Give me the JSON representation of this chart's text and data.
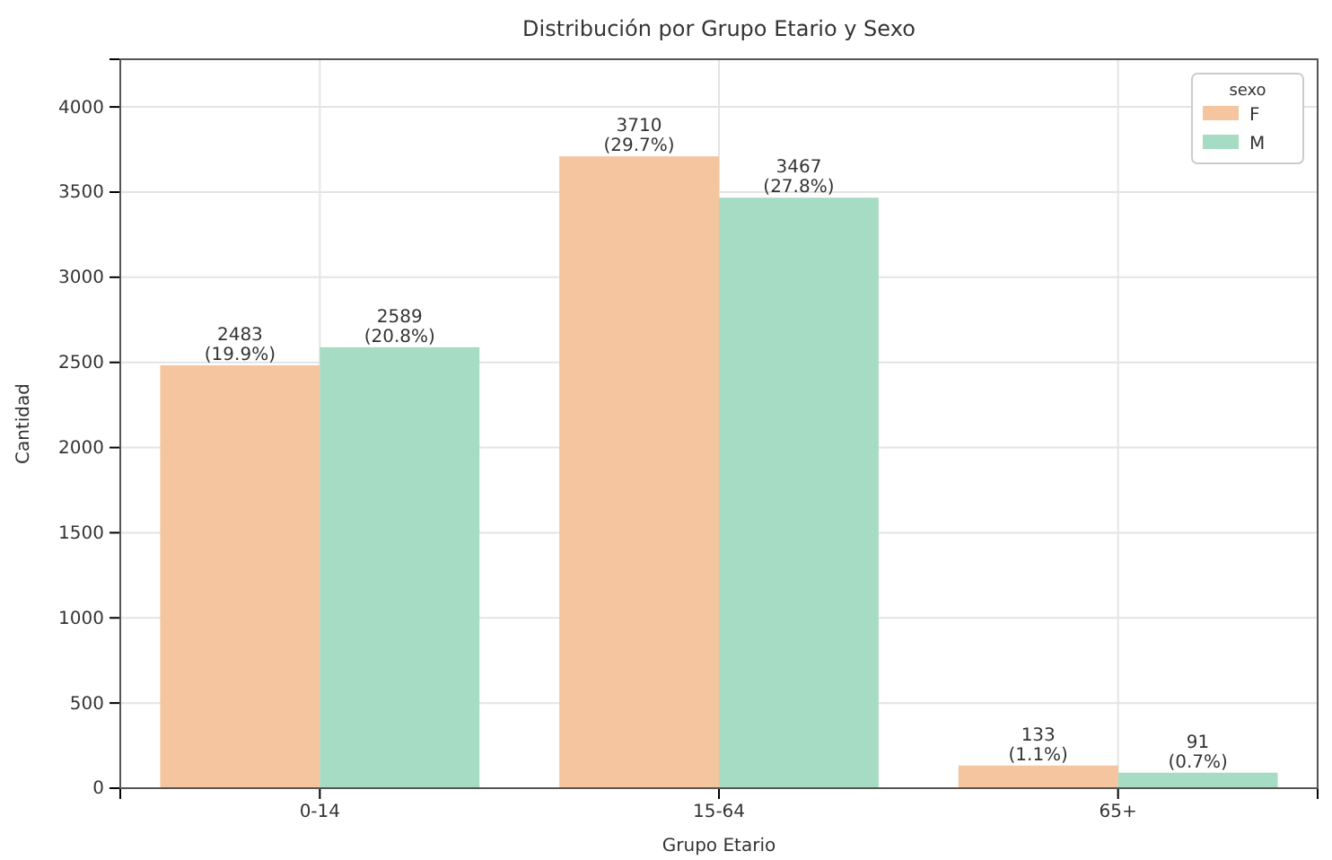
{
  "chart_data": {
    "type": "bar",
    "title": "Distribución por Grupo Etario y Sexo",
    "xlabel": "Grupo Etario",
    "ylabel": "Cantidad",
    "legend_title": "sexo",
    "categories": [
      "0-14",
      "15-64",
      "65+"
    ],
    "series": [
      {
        "name": "F",
        "color": "#f4c59e",
        "values": [
          2483,
          3710,
          133
        ],
        "value_labels": [
          "2483\n(19.9%)",
          "3710\n(29.7%)",
          "133\n(1.1%)"
        ]
      },
      {
        "name": "M",
        "color": "#a6dbc4",
        "values": [
          2589,
          3467,
          91
        ],
        "value_labels": [
          "2589\n(20.8%)",
          "3467\n(27.8%)",
          "91\n(0.7%)"
        ]
      }
    ],
    "ylim": [
      0,
      4280
    ],
    "yticks": [
      0,
      500,
      1000,
      1500,
      2000,
      2500,
      3000,
      3500,
      4000
    ],
    "grid": true,
    "legend": "top right"
  }
}
